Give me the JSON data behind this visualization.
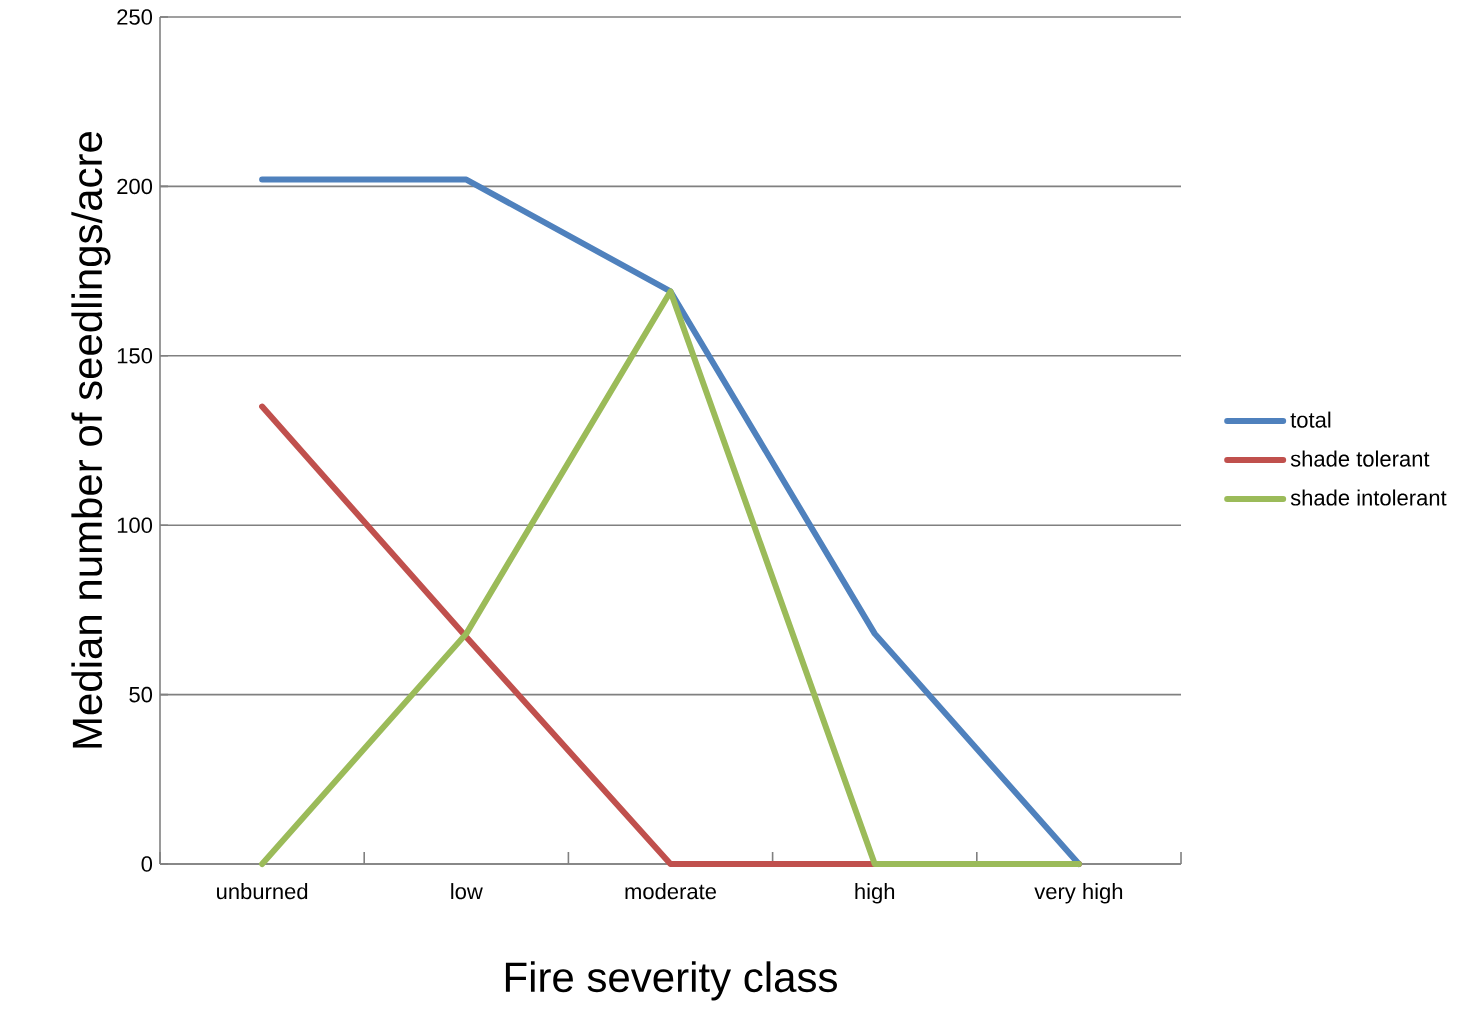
{
  "chart_data": {
    "type": "line",
    "xlabel": "Fire severity class",
    "ylabel": "Median number of seedlings/acre",
    "categories": [
      "unburned",
      "low",
      "moderate",
      "high",
      "very high"
    ],
    "series": [
      {
        "name": "total",
        "color": "#4f81bd",
        "values": [
          202,
          202,
          169,
          68,
          0
        ]
      },
      {
        "name": "shade tolerant",
        "color": "#c0504d",
        "values": [
          135,
          67,
          0,
          0,
          0
        ]
      },
      {
        "name": "shade intolerant",
        "color": "#9bbb59",
        "values": [
          0,
          68,
          169,
          0,
          0
        ]
      }
    ],
    "ylim": [
      0,
      250
    ],
    "yticks": [
      0,
      50,
      100,
      150,
      200,
      250
    ],
    "grid": "y",
    "legend": "right",
    "marker": "none",
    "line_style": "solid"
  }
}
